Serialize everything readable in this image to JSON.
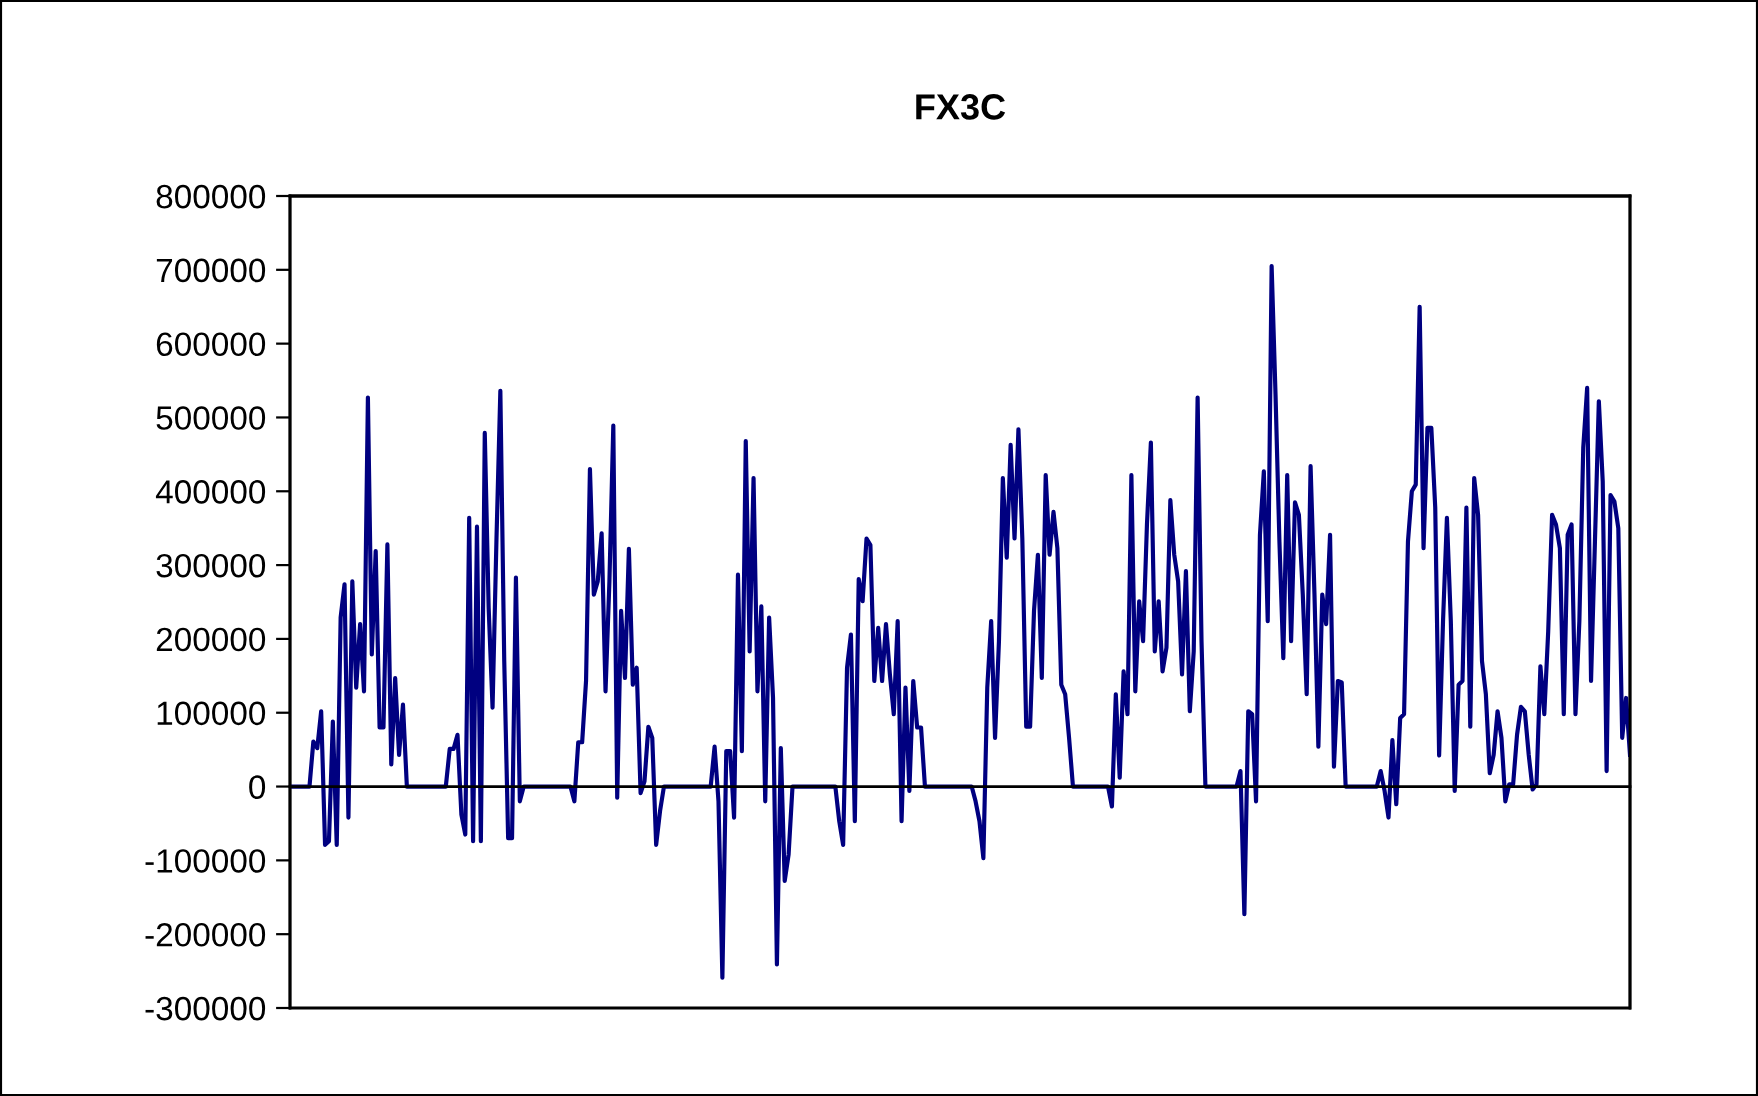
{
  "chart_data": {
    "type": "line",
    "title": "FX3C",
    "categories": [
      null,
      null,
      null,
      null,
      null,
      null,
      null,
      null,
      null,
      null,
      null,
      null,
      null,
      null,
      null,
      null,
      null,
      null,
      null,
      null,
      null,
      null,
      null,
      null,
      null,
      null,
      null,
      null,
      null,
      null,
      null,
      null,
      null,
      null,
      null,
      null,
      null,
      null,
      null,
      null,
      null,
      null,
      null,
      null,
      null,
      null,
      null,
      null,
      null,
      null,
      null,
      null,
      null,
      null,
      null,
      null,
      null,
      null,
      null,
      null,
      null,
      null,
      null,
      null,
      null,
      null,
      null,
      null,
      null,
      null,
      null,
      null,
      null,
      null,
      null,
      null,
      null,
      null,
      null,
      null,
      null,
      null,
      null,
      null,
      null,
      null,
      null,
      null,
      null,
      null,
      null,
      null,
      null,
      null,
      null,
      null,
      null,
      null,
      null,
      null,
      null,
      null,
      null,
      null,
      null,
      null,
      null,
      null,
      null,
      null,
      null,
      null,
      null,
      null,
      null,
      null,
      null,
      null,
      null,
      null,
      null,
      null,
      null,
      null,
      null,
      null,
      null,
      null,
      null,
      null,
      null,
      null,
      null,
      null,
      null,
      null,
      null,
      null,
      null,
      null,
      null,
      null,
      null,
      null,
      null,
      null,
      null,
      null,
      null,
      null,
      null,
      null,
      null,
      null,
      null,
      null,
      null,
      null,
      null,
      null,
      null,
      null,
      null,
      null,
      null,
      null,
      null,
      null,
      null,
      null,
      null,
      null,
      null,
      null,
      null,
      null,
      null,
      null,
      null,
      null,
      null,
      null,
      null,
      null,
      null,
      null,
      null,
      null,
      null,
      null,
      null,
      null,
      null,
      null,
      null,
      null,
      null,
      null,
      null,
      null,
      null,
      null,
      null,
      null,
      null,
      null,
      null,
      null,
      null,
      null,
      null,
      null,
      null,
      null,
      null,
      null,
      null,
      null,
      null,
      null,
      null,
      null,
      null,
      null,
      null,
      null,
      null,
      null,
      null,
      null,
      null,
      null,
      null,
      null,
      null,
      null,
      null,
      null,
      null,
      null,
      null,
      null,
      null,
      null,
      null,
      null,
      null,
      null,
      null,
      null,
      null,
      null,
      null,
      null,
      null,
      null,
      null,
      null,
      null,
      null,
      null,
      null,
      null,
      null,
      null,
      null,
      null,
      null,
      null,
      null,
      null,
      null,
      null,
      null,
      null,
      null,
      null,
      null,
      null,
      null,
      null,
      null,
      null,
      null,
      null,
      null,
      null,
      null,
      null,
      null,
      null,
      null,
      null,
      null,
      null,
      null,
      null,
      null,
      null,
      null,
      null,
      null,
      null,
      null,
      null,
      null,
      null,
      null,
      null,
      null,
      null,
      null,
      null,
      null,
      null,
      null,
      null,
      null,
      null,
      null,
      null,
      null,
      null,
      null,
      null,
      null,
      null,
      null,
      null,
      null,
      null,
      null,
      null,
      null,
      null,
      null,
      null,
      null,
      null,
      null,
      null,
      null,
      null,
      null,
      null
    ],
    "series": [
      {
        "color": "#000080",
        "values": [
          0,
          0,
          0,
          0,
          0,
          0,
          61000,
          52000,
          102000,
          -79000,
          -74000,
          88000,
          -79000,
          229000,
          274000,
          -42000,
          278000,
          134000,
          220000,
          129000,
          527000,
          179000,
          319000,
          80000,
          80000,
          328000,
          30000,
          147000,
          43000,
          111000,
          0,
          0,
          0,
          0,
          0,
          0,
          0,
          0,
          0,
          0,
          0,
          51000,
          51000,
          70000,
          -38000,
          -65000,
          364000,
          -74000,
          352000,
          -74000,
          479000,
          242000,
          107000,
          334000,
          536000,
          170000,
          -70000,
          -70000,
          283000,
          -20000,
          0,
          0,
          0,
          0,
          0,
          0,
          0,
          0,
          0,
          0,
          0,
          0,
          0,
          -20000,
          60000,
          60000,
          143000,
          430000,
          260000,
          278000,
          343000,
          129000,
          278000,
          489000,
          -15000,
          238000,
          147000,
          322000,
          138000,
          161000,
          -9000,
          7000,
          81000,
          66000,
          -79000,
          -33000,
          0,
          0,
          0,
          0,
          0,
          0,
          0,
          0,
          0,
          0,
          0,
          0,
          0,
          54000,
          -20000,
          -259000,
          48000,
          48000,
          -42000,
          287000,
          48000,
          468000,
          183000,
          418000,
          129000,
          244000,
          -20000,
          229000,
          120000,
          -241000,
          52000,
          -128000,
          -92000,
          0,
          0,
          0,
          0,
          0,
          0,
          0,
          0,
          0,
          0,
          0,
          0,
          -47000,
          -79000,
          161000,
          206000,
          -47000,
          281000,
          251000,
          336000,
          327000,
          143000,
          215000,
          143000,
          220000,
          152000,
          98000,
          224000,
          -47000,
          134000,
          -6000,
          143000,
          80000,
          80000,
          0,
          0,
          0,
          0,
          0,
          0,
          0,
          0,
          0,
          0,
          0,
          0,
          0,
          -20000,
          -47000,
          -97000,
          134000,
          224000,
          66000,
          197000,
          418000,
          310000,
          463000,
          336000,
          484000,
          336000,
          81000,
          81000,
          238000,
          314000,
          147000,
          422000,
          314000,
          372000,
          323000,
          138000,
          125000,
          66000,
          0,
          0,
          0,
          0,
          0,
          0,
          0,
          0,
          0,
          0,
          -27000,
          125000,
          12000,
          156000,
          98000,
          422000,
          129000,
          251000,
          197000,
          356000,
          466000,
          183000,
          251000,
          156000,
          188000,
          388000,
          314000,
          278000,
          152000,
          292000,
          102000,
          183000,
          527000,
          197000,
          0,
          0,
          0,
          0,
          0,
          0,
          0,
          0,
          0,
          21000,
          -173000,
          102000,
          98000,
          -20000,
          341000,
          427000,
          224000,
          705000,
          531000,
          332000,
          174000,
          422000,
          197000,
          385000,
          368000,
          260000,
          125000,
          434000,
          260000,
          54000,
          260000,
          220000,
          341000,
          27000,
          143000,
          141000,
          0,
          0,
          0,
          0,
          0,
          0,
          0,
          0,
          0,
          21000,
          -6000,
          -42000,
          63000,
          -24000,
          93000,
          98000,
          332000,
          400000,
          409000,
          650000,
          323000,
          486000,
          486000,
          378000,
          42000,
          224000,
          364000,
          224000,
          -6000,
          138000,
          143000,
          378000,
          81000,
          418000,
          368000,
          170000,
          125000,
          18000,
          43000,
          102000,
          66000,
          -20000,
          3000,
          3000,
          70000,
          108000,
          102000,
          43000,
          -4000,
          3000,
          163000,
          98000,
          210000,
          368000,
          355000,
          323000,
          98000,
          341000,
          355000,
          98000,
          224000,
          459000,
          540000,
          143000,
          332000,
          522000,
          413000,
          21000,
          395000,
          386000,
          350000,
          66000,
          120000,
          43000
        ]
      }
    ],
    "ylim": [
      -300000,
      800000
    ],
    "yticks": [
      -300000,
      -200000,
      -100000,
      0,
      100000,
      200000,
      300000,
      400000,
      500000,
      600000,
      700000,
      800000
    ],
    "legend": false,
    "marker": "none",
    "line_style": "solid"
  }
}
